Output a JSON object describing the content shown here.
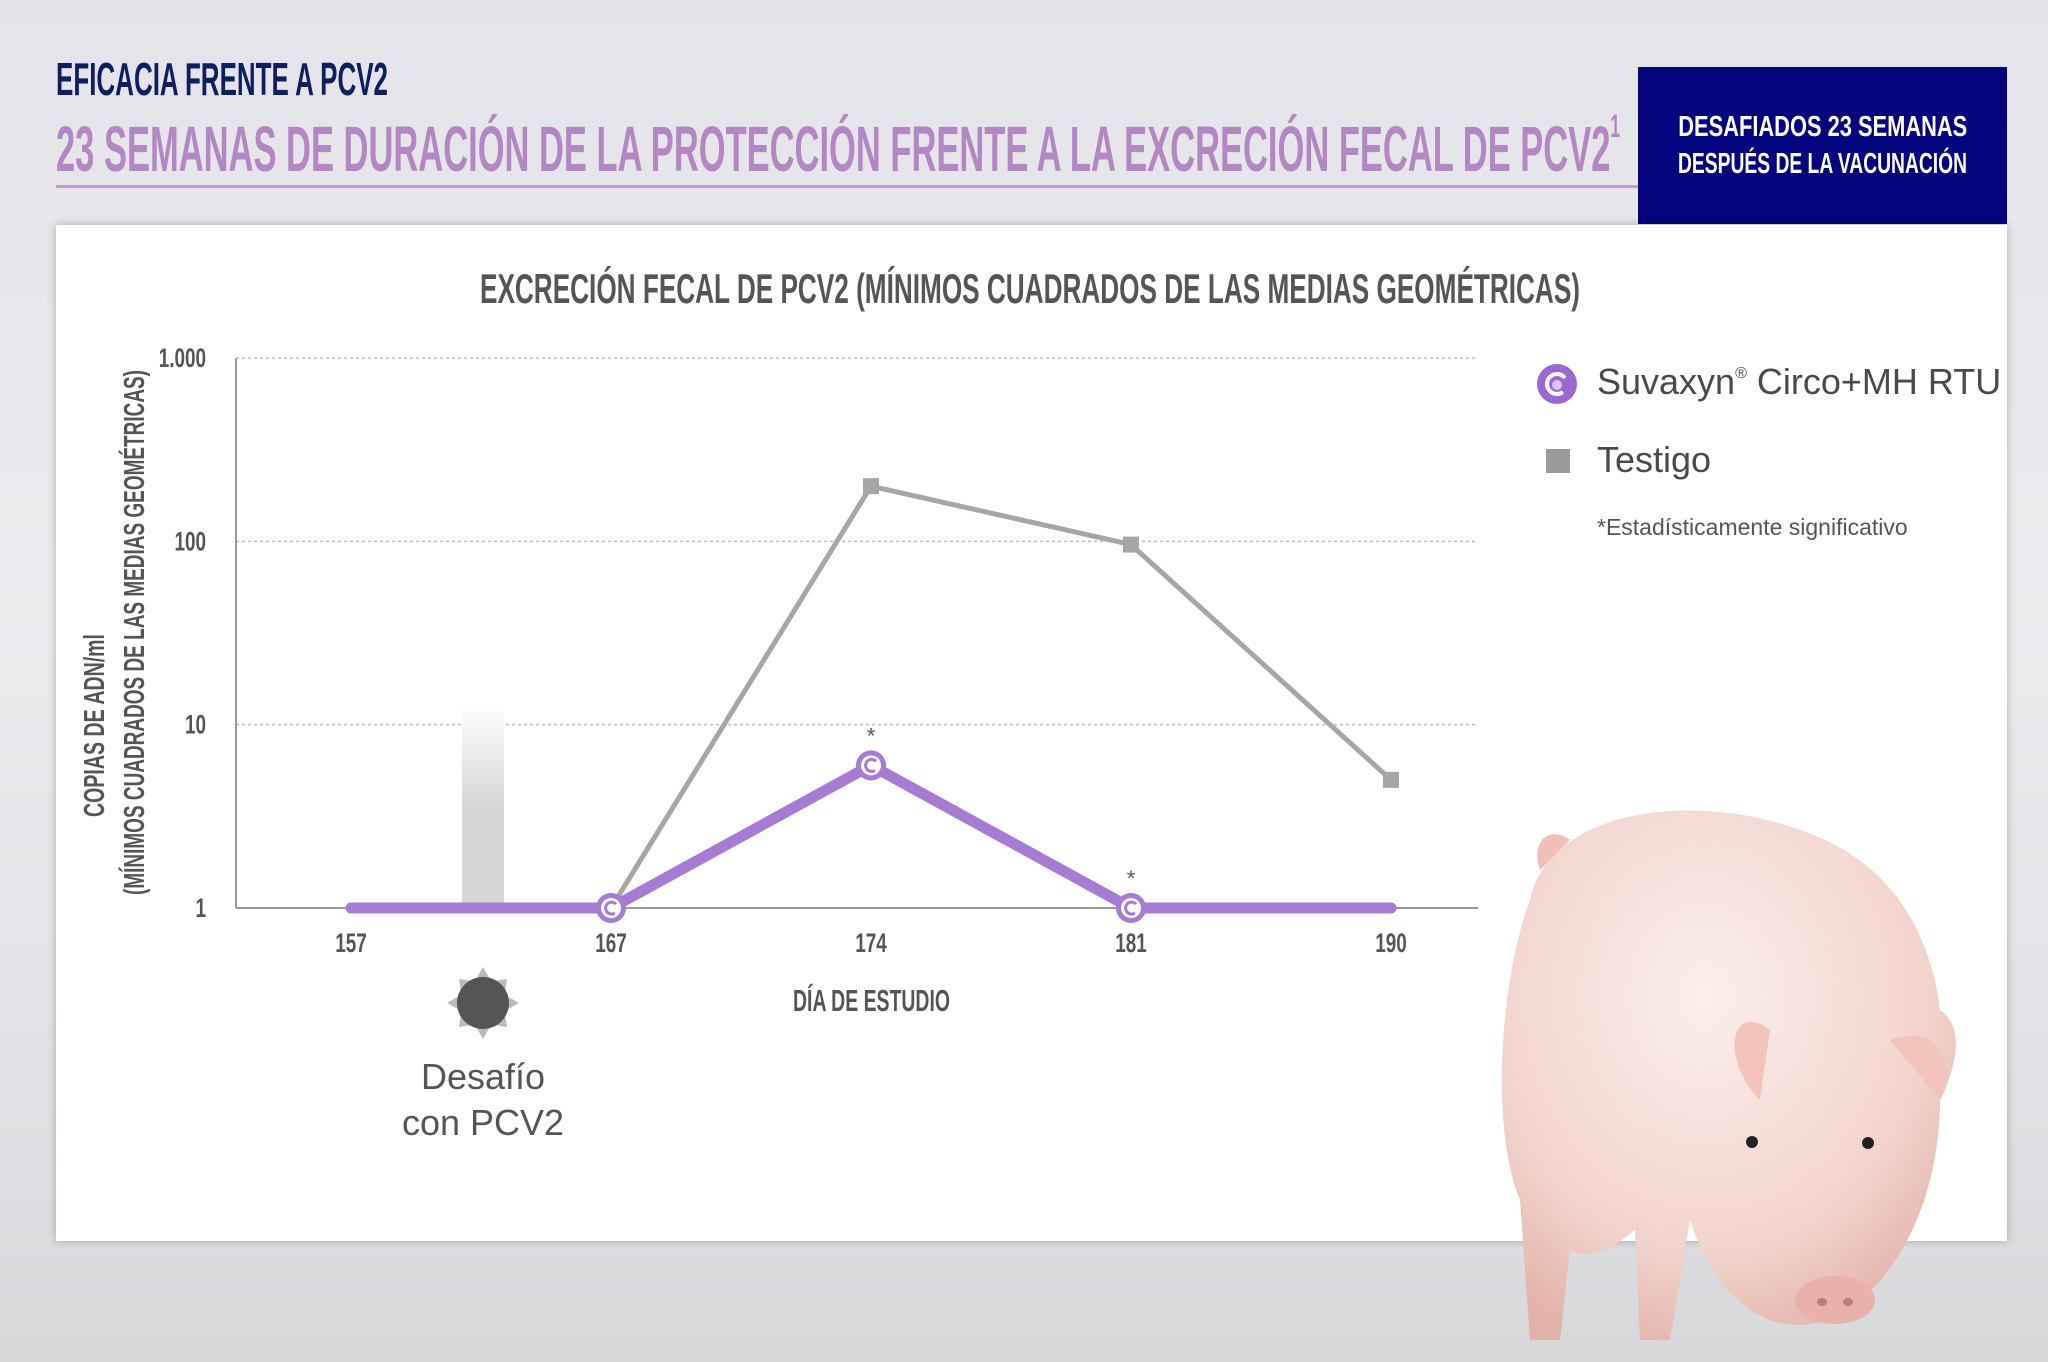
{
  "header": {
    "kicker": "EFICACIA FRENTE A PCV2",
    "headline": "23 SEMANAS DE DURACIÓN DE LA PROTECCIÓN FRENTE A LA EXCRECIÓN FECAL DE PCV2",
    "headline_sup": "1",
    "badge_line1": "DESAFIADOS 23 SEMANAS",
    "badge_line2": "DESPUÉS DE LA VACUNACIÓN"
  },
  "colors": {
    "navy": "#04047e",
    "purple": "#a57bd4",
    "lilac": "#b386c4",
    "gray": "#a6a6a6"
  },
  "legend": {
    "suvaxyn_name": "Suvaxyn",
    "suvaxyn_reg": "®",
    "suvaxyn_rest": " Circo+MH RTU",
    "testigo": "Testigo",
    "footnote": "*Estadísticamente significativo"
  },
  "challenge": {
    "line1": "Desafío",
    "line2": "con PCV2",
    "day": 162
  },
  "chart_data": {
    "type": "line",
    "title": "EXCRECIÓN FECAL DE PCV2 (MÍNIMOS CUADRADOS DE LAS MEDIAS GEOMÉTRICAS)",
    "xlabel": "DÍA DE ESTUDIO",
    "ylabel_line1": "COPIAS DE ADN/ml",
    "ylabel_line2": "(MÍNIMOS CUADRADOS DE LAS MEDIAS GEOMÉTRICAS)",
    "yscale": "log",
    "ylim": [
      1,
      1000
    ],
    "yticks": [
      1,
      10,
      100,
      1000
    ],
    "ytick_labels": [
      "1",
      "10",
      "100",
      "1.000"
    ],
    "categories": [
      "157",
      "167",
      "174",
      "181",
      "190"
    ],
    "grid": true,
    "legend_position": "right",
    "series": [
      {
        "name": "Suvaxyn® Circo+MH RTU",
        "values": [
          1,
          1,
          6,
          1,
          1
        ],
        "markers": [
          false,
          true,
          true,
          true,
          false
        ],
        "significant": [
          false,
          false,
          true,
          true,
          false
        ]
      },
      {
        "name": "Testigo",
        "values": [
          null,
          1,
          200,
          96,
          5
        ],
        "markers": [
          false,
          false,
          true,
          true,
          true
        ]
      }
    ],
    "significance_mark": "*"
  }
}
